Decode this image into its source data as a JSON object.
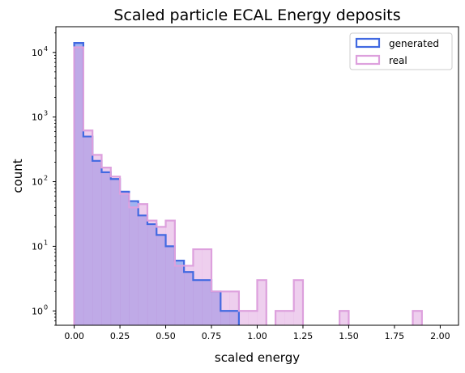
{
  "chart_data": {
    "type": "histogram",
    "title": "Scaled particle ECAL Energy deposits",
    "xlabel": "scaled energy",
    "ylabel": "count",
    "xlim": [
      -0.1,
      2.1
    ],
    "ylim": [
      0.6,
      25000
    ],
    "yscale": "log",
    "grid": false,
    "legend_position": "top-right",
    "bins": [
      0.0,
      0.05,
      0.1,
      0.15,
      0.2,
      0.25,
      0.3,
      0.35,
      0.4,
      0.45,
      0.5,
      0.55,
      0.6,
      0.65,
      0.7,
      0.75,
      0.8,
      0.85,
      0.9,
      0.95,
      1.0,
      1.05,
      1.1,
      1.15,
      1.2,
      1.25,
      1.3,
      1.35,
      1.4,
      1.45,
      1.5,
      1.55,
      1.6,
      1.65,
      1.7,
      1.75,
      1.8,
      1.85,
      1.9,
      1.95,
      2.0
    ],
    "xticks": [
      0.0,
      0.25,
      0.5,
      0.75,
      1.0,
      1.25,
      1.5,
      1.75,
      2.0
    ],
    "xtick_labels": [
      "0.00",
      "0.25",
      "0.50",
      "0.75",
      "1.00",
      "1.25",
      "1.50",
      "1.75",
      "2.00"
    ],
    "yticks": [
      1,
      10,
      100,
      1000,
      10000
    ],
    "ytick_labels": [
      "10",
      "10",
      "10",
      "10",
      "10"
    ],
    "ytick_exponents": [
      "0",
      "1",
      "2",
      "3",
      "4"
    ],
    "series": [
      {
        "name": "generated",
        "edge_color": "#4169e1",
        "fill_color": "#4169e1",
        "fill_opacity": 0.5,
        "counts": [
          14000,
          500,
          210,
          140,
          110,
          70,
          50,
          30,
          22,
          15,
          10,
          6,
          4,
          3,
          3,
          2,
          1,
          1,
          0,
          0,
          0,
          0,
          0,
          0,
          0,
          0,
          0,
          0,
          0,
          0,
          0,
          0,
          0,
          0,
          0,
          0,
          0,
          0,
          0,
          0
        ]
      },
      {
        "name": "real",
        "edge_color": "#dda0dd",
        "fill_color": "#dda0dd",
        "fill_opacity": 0.5,
        "counts": [
          12000,
          620,
          260,
          165,
          120,
          65,
          40,
          45,
          25,
          20,
          25,
          5,
          5,
          9,
          9,
          2,
          2,
          2,
          1,
          1,
          3,
          0,
          1,
          1,
          3,
          0,
          0,
          0,
          0,
          1,
          0,
          0,
          0,
          0,
          0,
          0,
          0,
          1,
          0,
          0
        ]
      }
    ]
  }
}
